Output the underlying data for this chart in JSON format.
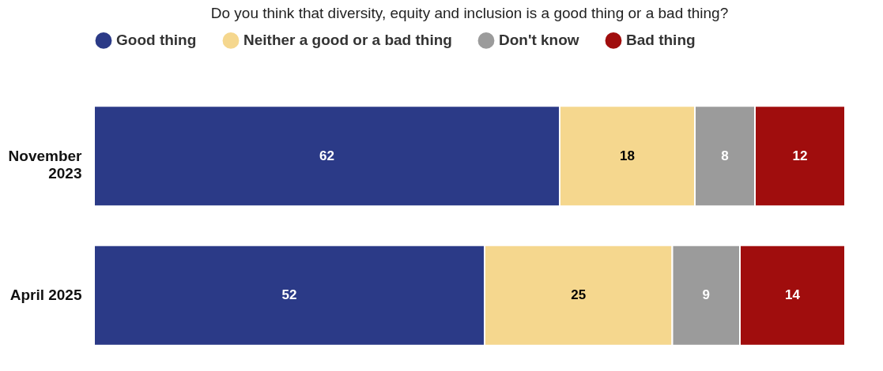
{
  "chart_data": {
    "type": "bar",
    "orientation": "horizontal",
    "stacked": true,
    "title": "Do you think that diversity, equity and inclusion is a good thing or a bad thing?",
    "categories": [
      "November\n2023",
      "April 2025"
    ],
    "series": [
      {
        "name": "Good thing",
        "color": "#2b3a87",
        "values": [
          62,
          52
        ]
      },
      {
        "name": "Neither a good or a bad thing",
        "color": "#f5d78e",
        "values": [
          18,
          25
        ]
      },
      {
        "name": "Don't know",
        "color": "#9b9b9b",
        "values": [
          8,
          9
        ]
      },
      {
        "name": "Bad thing",
        "color": "#a00d0d",
        "values": [
          12,
          14
        ]
      }
    ],
    "xlim": [
      0,
      100
    ],
    "tick_labels": "y",
    "data_labels": true,
    "legend": "top"
  }
}
